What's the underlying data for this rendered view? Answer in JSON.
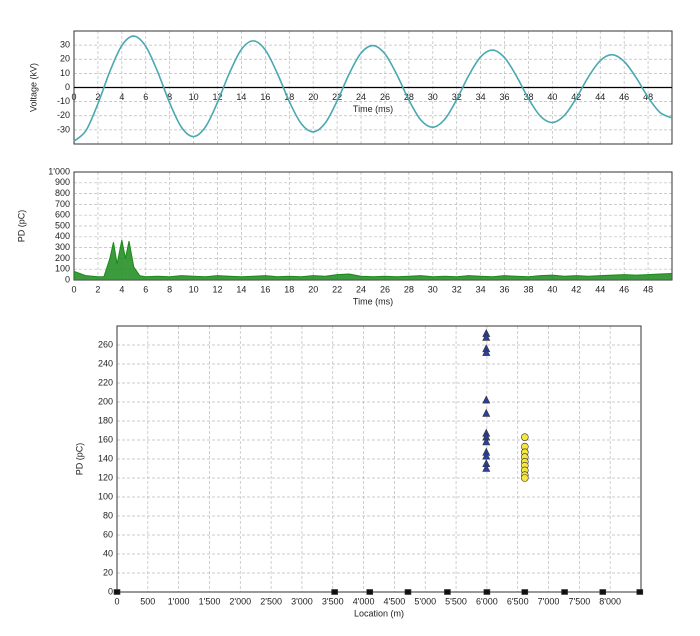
{
  "chart_data": [
    {
      "type": "line",
      "xlabel": "Time (ms)",
      "ylabel": "Voltage (kV)",
      "color": "#4aa8b0",
      "grid": true,
      "zero_line": true,
      "xlim": [
        0,
        50
      ],
      "xticks": [
        0,
        2,
        4,
        6,
        8,
        10,
        12,
        14,
        16,
        18,
        20,
        22,
        24,
        26,
        28,
        30,
        32,
        34,
        36,
        38,
        40,
        42,
        44,
        46,
        48
      ],
      "ylim": [
        -40,
        40
      ],
      "yticks": [
        -30,
        -20,
        -10,
        0,
        10,
        20,
        30
      ],
      "x": [
        0,
        1,
        2,
        3,
        4,
        5,
        6,
        7,
        8,
        9,
        10,
        11,
        12,
        13,
        14,
        15,
        16,
        17,
        18,
        19,
        20,
        21,
        22,
        23,
        24,
        25,
        26,
        27,
        28,
        29,
        30,
        31,
        32,
        33,
        34,
        35,
        36,
        37,
        38,
        39,
        40,
        41,
        42,
        43,
        44,
        45,
        46,
        47,
        48,
        49,
        50
      ],
      "values": [
        -38,
        -30.5,
        -11.5,
        11.4,
        29.7,
        36.4,
        29.1,
        11.0,
        -10.9,
        -28.3,
        -34.7,
        -27.8,
        -10.5,
        10.4,
        27.0,
        33.0,
        26.5,
        10.0,
        -9.9,
        -25.6,
        -31.4,
        -25.2,
        -9.5,
        9.4,
        24.4,
        29.7,
        23.8,
        9.0,
        -8.9,
        -23.0,
        -28.1,
        -22.5,
        -8.5,
        8.4,
        21.7,
        26.5,
        21.1,
        8.0,
        -7.9,
        -20.3,
        -24.8,
        -19.8,
        -7.5,
        7.4,
        19.0,
        23.2,
        18.4,
        7.0,
        -6.9,
        -17.7,
        -21.5
      ]
    },
    {
      "type": "area",
      "xlabel": "Time (ms)",
      "ylabel": "PD (pC)",
      "color": "#1a8a1a",
      "grid": true,
      "xlim": [
        0,
        50
      ],
      "xticks": [
        0,
        2,
        4,
        6,
        8,
        10,
        12,
        14,
        16,
        18,
        20,
        22,
        24,
        26,
        28,
        30,
        32,
        34,
        36,
        38,
        40,
        42,
        44,
        46,
        48
      ],
      "ylim": [
        0,
        1000
      ],
      "yticks": [
        0,
        100,
        200,
        300,
        400,
        500,
        600,
        700,
        800,
        900,
        {
          "value": 1000,
          "label": "1'000"
        }
      ],
      "x": [
        0,
        1,
        2,
        2.5,
        3,
        3.3,
        3.6,
        4,
        4.3,
        4.6,
        5,
        5.5,
        6,
        7,
        8,
        9,
        10,
        11,
        12,
        13,
        14,
        15,
        16,
        17,
        18,
        19,
        20,
        21,
        22,
        23,
        24,
        25,
        26,
        27,
        28,
        29,
        30,
        31,
        32,
        33,
        34,
        35,
        36,
        37,
        38,
        39,
        40,
        41,
        42,
        43,
        44,
        45,
        46,
        47,
        48,
        49,
        50
      ],
      "values": [
        80,
        40,
        30,
        30,
        200,
        350,
        150,
        370,
        200,
        360,
        120,
        40,
        30,
        35,
        30,
        40,
        35,
        30,
        40,
        35,
        30,
        35,
        40,
        30,
        35,
        30,
        40,
        35,
        50,
        55,
        35,
        30,
        35,
        30,
        35,
        40,
        30,
        35,
        30,
        40,
        35,
        30,
        40,
        35,
        30,
        40,
        45,
        35,
        40,
        35,
        40,
        45,
        50,
        45,
        50,
        55,
        60
      ]
    },
    {
      "type": "scatter",
      "xlabel": "Location (m)",
      "ylabel": "PD (pC)",
      "grid": true,
      "xlim": [
        0,
        8500
      ],
      "xticks": [
        0,
        500,
        {
          "value": 1000,
          "label": "1'000"
        },
        {
          "value": 1500,
          "label": "1'500"
        },
        {
          "value": 2000,
          "label": "2'000"
        },
        {
          "value": 2500,
          "label": "2'500"
        },
        {
          "value": 3000,
          "label": "3'000"
        },
        {
          "value": 3500,
          "label": "3'500"
        },
        {
          "value": 4000,
          "label": "4'000"
        },
        {
          "value": 4500,
          "label": "4'500"
        },
        {
          "value": 5000,
          "label": "5'000"
        },
        {
          "value": 5500,
          "label": "5'500"
        },
        {
          "value": 6000,
          "label": "6'000"
        },
        {
          "value": 6500,
          "label": "6'500"
        },
        {
          "value": 7000,
          "label": "7'000"
        },
        {
          "value": 7500,
          "label": "7'500"
        },
        {
          "value": 8000,
          "label": "8'000"
        }
      ],
      "ylim": [
        0,
        280
      ],
      "yticks": [
        0,
        20,
        40,
        60,
        80,
        100,
        120,
        140,
        160,
        180,
        200,
        220,
        240,
        260
      ],
      "series": [
        {
          "color": "#2b3fa0",
          "marker": "triangle",
          "x": [
            5990,
            5990,
            5990,
            5990,
            5990,
            5990,
            5990,
            5990,
            5990,
            5990,
            5990,
            5990,
            5990
          ],
          "values": [
            272,
            268,
            256,
            252,
            202,
            188,
            167,
            163,
            158,
            147,
            143,
            135,
            130
          ]
        },
        {
          "color": "#f5e642",
          "marker": "circle",
          "x": [
            6615,
            6615,
            6615,
            6615,
            6615,
            6615,
            6615,
            6615,
            6615
          ],
          "values": [
            163,
            153,
            147,
            142,
            137,
            133,
            128,
            123,
            120
          ]
        },
        {
          "color": "#111111",
          "marker": "square",
          "x": [
            0,
            3530,
            4100,
            4720,
            5360,
            6000,
            6615,
            7260,
            7880,
            8480
          ],
          "values": [
            0,
            0,
            0,
            0,
            0,
            0,
            0,
            0,
            0,
            0
          ]
        }
      ]
    }
  ]
}
